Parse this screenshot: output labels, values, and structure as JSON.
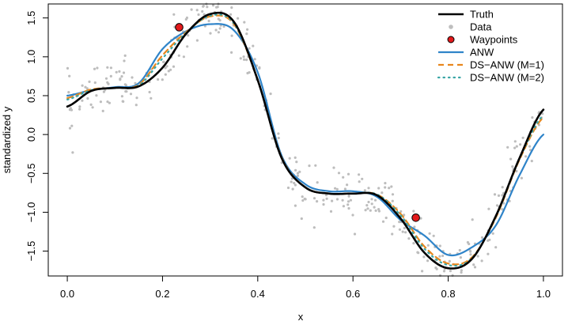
{
  "chart_data": {
    "type": "line",
    "title": "",
    "xlabel": "x",
    "ylabel": "standardized y",
    "xlim": [
      -0.04,
      1.04
    ],
    "ylim": [
      -1.82,
      1.68
    ],
    "x_ticks": [
      0.0,
      0.2,
      0.4,
      0.6,
      0.8,
      1.0
    ],
    "x_tick_labels": [
      "0.0",
      "0.2",
      "0.4",
      "0.6",
      "0.8",
      "1.0"
    ],
    "y_ticks": [
      -1.5,
      -1.0,
      -0.5,
      0.0,
      0.5,
      1.0,
      1.5
    ],
    "y_tick_labels": [
      "−1.5",
      "−1.0",
      "−0.5",
      "0.0",
      "0.5",
      "1.0",
      "1.5"
    ],
    "grid": false,
    "legend_position": "top-right",
    "legend": [
      {
        "label": "Truth",
        "kind": "line",
        "color": "#000000",
        "dash": "solid"
      },
      {
        "label": "Data",
        "kind": "point",
        "color": "#bebebe"
      },
      {
        "label": "Waypoints",
        "kind": "marker",
        "color": "#e31a1c"
      },
      {
        "label": "ANW",
        "kind": "line",
        "color": "#2f84c9",
        "dash": "solid"
      },
      {
        "label": "DS−ANW (M=1)",
        "kind": "line",
        "color": "#e8871e",
        "dash": "dashed"
      },
      {
        "label": "DS−ANW (M=2)",
        "kind": "line",
        "color": "#3aa6a6",
        "dash": "dotted"
      }
    ],
    "series": [
      {
        "name": "Truth",
        "x": [
          0.0,
          0.05,
          0.1,
          0.15,
          0.2,
          0.25,
          0.3,
          0.35,
          0.4,
          0.45,
          0.5,
          0.55,
          0.6,
          0.65,
          0.7,
          0.75,
          0.8,
          0.85,
          0.9,
          0.95,
          1.0
        ],
        "y": [
          0.36,
          0.56,
          0.6,
          0.62,
          0.86,
          1.3,
          1.55,
          1.45,
          0.7,
          -0.3,
          -0.68,
          -0.76,
          -0.76,
          -0.78,
          -1.08,
          -1.52,
          -1.72,
          -1.6,
          -1.05,
          -0.3,
          0.32
        ]
      },
      {
        "name": "ANW",
        "x": [
          0.0,
          0.05,
          0.1,
          0.15,
          0.2,
          0.25,
          0.3,
          0.35,
          0.4,
          0.45,
          0.5,
          0.55,
          0.6,
          0.65,
          0.7,
          0.75,
          0.8,
          0.85,
          0.9,
          0.95,
          1.0
        ],
        "y": [
          0.5,
          0.57,
          0.61,
          0.66,
          1.1,
          1.33,
          1.42,
          1.34,
          0.8,
          -0.27,
          -0.64,
          -0.73,
          -0.73,
          -0.8,
          -1.1,
          -1.3,
          -1.55,
          -1.45,
          -1.17,
          -0.52,
          0.0
        ]
      },
      {
        "name": "DS−ANW (M=1)",
        "x": [
          0.0,
          0.05,
          0.1,
          0.15,
          0.2,
          0.25,
          0.3,
          0.35,
          0.4,
          0.45,
          0.5,
          0.55,
          0.6,
          0.65,
          0.7,
          0.75,
          0.8,
          0.85,
          0.9,
          0.95,
          1.0
        ],
        "y": [
          0.47,
          0.58,
          0.6,
          0.64,
          1.02,
          1.32,
          1.52,
          1.42,
          0.7,
          -0.29,
          -0.68,
          -0.76,
          -0.76,
          -0.77,
          -1.02,
          -1.44,
          -1.66,
          -1.58,
          -1.07,
          -0.32,
          0.22
        ]
      },
      {
        "name": "DS−ANW (M=2)",
        "x": [
          0.0,
          0.05,
          0.1,
          0.15,
          0.2,
          0.25,
          0.3,
          0.35,
          0.4,
          0.45,
          0.5,
          0.55,
          0.6,
          0.65,
          0.7,
          0.75,
          0.8,
          0.85,
          0.9,
          0.95,
          1.0
        ],
        "y": [
          0.45,
          0.57,
          0.6,
          0.63,
          0.98,
          1.31,
          1.53,
          1.43,
          0.7,
          -0.3,
          -0.68,
          -0.76,
          -0.76,
          -0.77,
          -1.04,
          -1.47,
          -1.68,
          -1.59,
          -1.06,
          -0.31,
          0.25
        ]
      }
    ],
    "waypoints": {
      "name": "Waypoints",
      "x": [
        0.235,
        0.732
      ],
      "y": [
        1.38,
        -1.07
      ]
    },
    "scatter": {
      "name": "Data",
      "n": 380,
      "noise_sd": 0.18
    }
  }
}
